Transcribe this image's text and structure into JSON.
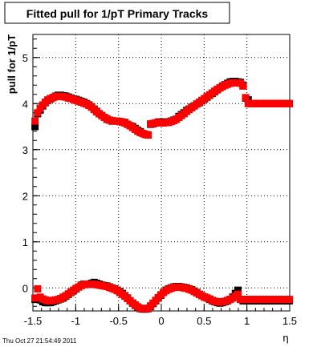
{
  "chart_data": {
    "type": "scatter",
    "title": "Fitted pull for 1/pT  Primary Tracks",
    "xlabel": "η",
    "ylabel": "pull for 1/pT",
    "xlim": [
      -1.5,
      1.5
    ],
    "ylim": [
      -0.5,
      5.5
    ],
    "x_ticks": [
      "-1.5",
      "-1",
      "-0.5",
      "0",
      "0.5",
      "1",
      "1.5"
    ],
    "y_ticks": [
      "0",
      "1",
      "2",
      "3",
      "4",
      "5"
    ],
    "grid": true,
    "footer": "Thu Oct 27 21:54:49 2011",
    "series": [
      {
        "color": "#000000",
        "group": "upper",
        "x": [
          -1.475,
          -1.445,
          -1.415,
          -1.385,
          -1.355,
          -1.325,
          -1.295,
          -1.265,
          -1.235,
          -1.205,
          -1.175,
          -1.145,
          -1.115,
          -1.085,
          -1.055,
          -1.025,
          -0.995,
          -0.965,
          -0.935,
          -0.905,
          -0.875,
          -0.845,
          -0.815,
          -0.785,
          -0.755,
          -0.725,
          -0.695,
          -0.665,
          -0.635,
          -0.605,
          -0.575,
          -0.545,
          -0.515,
          -0.485,
          -0.455,
          -0.425,
          -0.395,
          -0.365,
          -0.335,
          -0.305,
          -0.275,
          -0.245,
          -0.215,
          -0.185,
          -0.155,
          -0.125,
          -0.095,
          -0.065,
          -0.035,
          -0.005,
          0.025,
          0.055,
          0.085,
          0.115,
          0.145,
          0.175,
          0.205,
          0.235,
          0.265,
          0.295,
          0.325,
          0.355,
          0.385,
          0.415,
          0.445,
          0.475,
          0.505,
          0.535,
          0.565,
          0.595,
          0.625,
          0.655,
          0.685,
          0.715,
          0.745,
          0.775,
          0.805,
          0.835,
          0.865,
          0.895,
          0.925,
          0.955,
          0.985,
          1.015,
          1.045,
          1.075,
          1.105,
          1.135,
          1.165,
          1.195,
          1.225,
          1.255,
          1.285,
          1.315,
          1.345,
          1.375,
          1.405,
          1.435,
          1.465,
          1.495
        ],
        "y": [
          3.5,
          3.78,
          3.86,
          3.95,
          4.02,
          4.07,
          4.1,
          4.13,
          4.16,
          4.18,
          4.18,
          4.17,
          4.16,
          4.14,
          4.12,
          4.1,
          4.09,
          4.07,
          4.05,
          4.03,
          4.0,
          3.97,
          3.93,
          3.88,
          3.83,
          3.78,
          3.74,
          3.7,
          3.66,
          3.64,
          3.62,
          3.62,
          3.62,
          3.61,
          3.6,
          3.59,
          3.55,
          3.52,
          3.5,
          3.46,
          3.42,
          3.39,
          3.35,
          3.33,
          3.32,
          3.55,
          3.56,
          3.58,
          3.6,
          3.6,
          3.6,
          3.6,
          3.6,
          3.62,
          3.64,
          3.66,
          3.72,
          3.76,
          3.8,
          3.85,
          3.88,
          3.92,
          3.95,
          3.99,
          4.02,
          4.06,
          4.1,
          4.14,
          4.18,
          4.22,
          4.26,
          4.3,
          4.34,
          4.38,
          4.41,
          4.44,
          4.47,
          4.48,
          4.48,
          4.47,
          4.46,
          4.4,
          4.12,
          4.08,
          4.0,
          4.0,
          4.0,
          4.0,
          4.0,
          4.0,
          4.0,
          4.0,
          4.0,
          4.0,
          4.0,
          4.0,
          4.0,
          4.0,
          4.0,
          4.0
        ]
      },
      {
        "color": "#ff0000",
        "group": "upper",
        "x": [
          -1.475,
          -1.445,
          -1.415,
          -1.385,
          -1.355,
          -1.325,
          -1.295,
          -1.265,
          -1.235,
          -1.205,
          -1.175,
          -1.145,
          -1.115,
          -1.085,
          -1.055,
          -1.025,
          -0.995,
          -0.965,
          -0.935,
          -0.905,
          -0.875,
          -0.845,
          -0.815,
          -0.785,
          -0.755,
          -0.725,
          -0.695,
          -0.665,
          -0.635,
          -0.605,
          -0.575,
          -0.545,
          -0.515,
          -0.485,
          -0.455,
          -0.425,
          -0.395,
          -0.365,
          -0.335,
          -0.305,
          -0.275,
          -0.245,
          -0.215,
          -0.185,
          -0.155,
          -0.125,
          -0.095,
          -0.065,
          -0.035,
          -0.005,
          0.025,
          0.055,
          0.085,
          0.115,
          0.145,
          0.175,
          0.205,
          0.235,
          0.265,
          0.295,
          0.325,
          0.355,
          0.385,
          0.415,
          0.445,
          0.475,
          0.505,
          0.535,
          0.565,
          0.595,
          0.625,
          0.655,
          0.685,
          0.715,
          0.745,
          0.775,
          0.805,
          0.835,
          0.865,
          0.895,
          0.925,
          0.955,
          0.985,
          1.015,
          1.045,
          1.075,
          1.105,
          1.135,
          1.165,
          1.195,
          1.225,
          1.255,
          1.285,
          1.315,
          1.345,
          1.375,
          1.405,
          1.435,
          1.465,
          1.495
        ],
        "y": [
          3.62,
          3.8,
          3.9,
          3.97,
          4.03,
          4.08,
          4.11,
          4.13,
          4.15,
          4.16,
          4.16,
          4.15,
          4.14,
          4.12,
          4.11,
          4.09,
          4.07,
          4.05,
          4.03,
          4.01,
          3.99,
          3.96,
          3.92,
          3.87,
          3.82,
          3.78,
          3.74,
          3.7,
          3.67,
          3.64,
          3.63,
          3.62,
          3.62,
          3.61,
          3.6,
          3.58,
          3.55,
          3.52,
          3.48,
          3.44,
          3.4,
          3.37,
          3.35,
          3.33,
          3.32,
          3.56,
          3.57,
          3.58,
          3.59,
          3.58,
          3.58,
          3.59,
          3.59,
          3.61,
          3.63,
          3.66,
          3.7,
          3.74,
          3.78,
          3.83,
          3.87,
          3.91,
          3.95,
          3.99,
          4.03,
          4.07,
          4.11,
          4.15,
          4.19,
          4.23,
          4.27,
          4.31,
          4.34,
          4.37,
          4.4,
          4.42,
          4.44,
          4.45,
          4.45,
          4.45,
          4.44,
          4.38,
          4.13,
          4.0,
          4.0,
          4.0,
          4.0,
          4.0,
          4.0,
          4.0,
          4.0,
          4.0,
          4.0,
          4.0,
          4.0,
          4.0,
          4.0,
          4.0,
          4.0,
          4.0
        ]
      },
      {
        "color": "#000000",
        "group": "lower",
        "x": [
          -1.475,
          -1.445,
          -1.415,
          -1.385,
          -1.355,
          -1.325,
          -1.295,
          -1.265,
          -1.235,
          -1.205,
          -1.175,
          -1.145,
          -1.115,
          -1.085,
          -1.055,
          -1.025,
          -0.995,
          -0.965,
          -0.935,
          -0.905,
          -0.875,
          -0.845,
          -0.815,
          -0.785,
          -0.755,
          -0.725,
          -0.695,
          -0.665,
          -0.635,
          -0.605,
          -0.575,
          -0.545,
          -0.515,
          -0.485,
          -0.455,
          -0.425,
          -0.395,
          -0.365,
          -0.335,
          -0.305,
          -0.275,
          -0.245,
          -0.215,
          -0.185,
          -0.155,
          -0.125,
          -0.095,
          -0.065,
          -0.035,
          -0.005,
          0.025,
          0.055,
          0.085,
          0.115,
          0.145,
          0.175,
          0.205,
          0.235,
          0.265,
          0.295,
          0.325,
          0.355,
          0.385,
          0.415,
          0.445,
          0.475,
          0.505,
          0.535,
          0.565,
          0.595,
          0.625,
          0.655,
          0.685,
          0.715,
          0.745,
          0.775,
          0.805,
          0.835,
          0.865,
          0.895,
          0.925,
          0.955,
          0.985,
          1.015,
          1.045,
          1.075,
          1.105,
          1.135,
          1.165,
          1.195,
          1.225,
          1.255,
          1.285,
          1.315,
          1.345,
          1.375,
          1.405,
          1.435,
          1.465,
          1.495
        ],
        "y": [
          -0.25,
          -0.22,
          -0.26,
          -0.3,
          -0.32,
          -0.32,
          -0.32,
          -0.3,
          -0.28,
          -0.26,
          -0.24,
          -0.22,
          -0.18,
          -0.14,
          -0.1,
          -0.06,
          -0.02,
          0.02,
          0.06,
          0.08,
          0.08,
          0.08,
          0.1,
          0.12,
          0.1,
          0.08,
          0.06,
          0.05,
          0.04,
          0.02,
          0.0,
          -0.02,
          -0.05,
          -0.08,
          -0.12,
          -0.17,
          -0.22,
          -0.28,
          -0.33,
          -0.38,
          -0.42,
          -0.45,
          -0.46,
          -0.46,
          -0.45,
          -0.4,
          -0.34,
          -0.28,
          -0.22,
          -0.16,
          -0.1,
          -0.05,
          -0.02,
          0.0,
          0.02,
          0.03,
          0.03,
          0.02,
          0.01,
          0.0,
          -0.02,
          -0.04,
          -0.07,
          -0.1,
          -0.14,
          -0.17,
          -0.2,
          -0.22,
          -0.25,
          -0.28,
          -0.3,
          -0.32,
          -0.33,
          -0.32,
          -0.3,
          -0.28,
          -0.25,
          -0.2,
          -0.12,
          -0.05,
          -0.25,
          -0.28,
          -0.28,
          -0.28,
          -0.28,
          -0.28,
          -0.28,
          -0.28,
          -0.28,
          -0.28,
          -0.28,
          -0.28,
          -0.28,
          -0.28,
          -0.28,
          -0.28,
          -0.28,
          -0.28,
          -0.28,
          -0.28
        ]
      },
      {
        "color": "#ff0000",
        "group": "lower",
        "x": [
          -1.475,
          -1.445,
          -1.415,
          -1.385,
          -1.355,
          -1.325,
          -1.295,
          -1.265,
          -1.235,
          -1.205,
          -1.175,
          -1.145,
          -1.115,
          -1.085,
          -1.055,
          -1.025,
          -0.995,
          -0.965,
          -0.935,
          -0.905,
          -0.875,
          -0.845,
          -0.815,
          -0.785,
          -0.755,
          -0.725,
          -0.695,
          -0.665,
          -0.635,
          -0.605,
          -0.575,
          -0.545,
          -0.515,
          -0.485,
          -0.455,
          -0.425,
          -0.395,
          -0.365,
          -0.335,
          -0.305,
          -0.275,
          -0.245,
          -0.215,
          -0.185,
          -0.155,
          -0.125,
          -0.095,
          -0.065,
          -0.035,
          -0.005,
          0.025,
          0.055,
          0.085,
          0.115,
          0.145,
          0.175,
          0.205,
          0.235,
          0.265,
          0.295,
          0.325,
          0.355,
          0.385,
          0.415,
          0.445,
          0.475,
          0.505,
          0.535,
          0.565,
          0.595,
          0.625,
          0.655,
          0.685,
          0.715,
          0.745,
          0.775,
          0.805,
          0.835,
          0.865,
          0.895,
          0.925,
          0.955,
          0.985,
          1.015,
          1.045,
          1.075,
          1.105,
          1.135,
          1.165,
          1.195,
          1.225,
          1.255,
          1.285,
          1.315,
          1.345,
          1.375,
          1.405,
          1.435,
          1.465,
          1.495
        ],
        "y": [
          -0.22,
          -0.02,
          -0.2,
          -0.24,
          -0.26,
          -0.28,
          -0.28,
          -0.27,
          -0.26,
          -0.25,
          -0.23,
          -0.2,
          -0.17,
          -0.13,
          -0.09,
          -0.05,
          -0.01,
          0.02,
          0.05,
          0.07,
          0.08,
          0.08,
          0.08,
          0.08,
          0.07,
          0.06,
          0.05,
          0.04,
          0.03,
          0.01,
          -0.01,
          -0.03,
          -0.06,
          -0.1,
          -0.14,
          -0.18,
          -0.23,
          -0.28,
          -0.33,
          -0.37,
          -0.41,
          -0.44,
          -0.45,
          -0.45,
          -0.44,
          -0.39,
          -0.33,
          -0.27,
          -0.21,
          -0.15,
          -0.1,
          -0.06,
          -0.03,
          -0.01,
          0.01,
          0.02,
          0.02,
          0.01,
          0.0,
          -0.01,
          -0.03,
          -0.05,
          -0.08,
          -0.11,
          -0.14,
          -0.17,
          -0.2,
          -0.22,
          -0.24,
          -0.27,
          -0.29,
          -0.3,
          -0.31,
          -0.3,
          -0.29,
          -0.27,
          -0.25,
          -0.22,
          -0.18,
          -0.14,
          -0.25,
          -0.25,
          -0.25,
          -0.25,
          -0.25,
          -0.25,
          -0.25,
          -0.25,
          -0.25,
          -0.25,
          -0.25,
          -0.25,
          -0.25,
          -0.25,
          -0.25,
          -0.25,
          -0.25,
          -0.25,
          -0.25,
          -0.25
        ]
      }
    ]
  }
}
